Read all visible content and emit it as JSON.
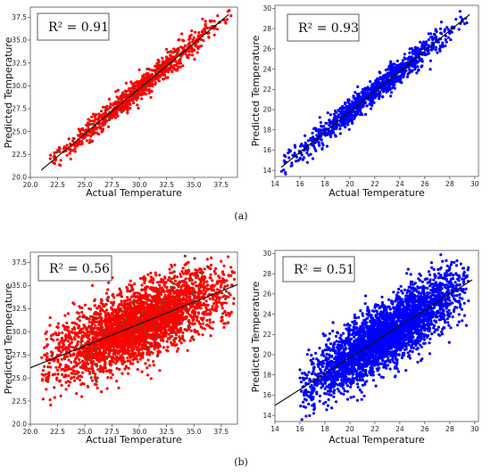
{
  "chart_data": [
    {
      "type": "scatter",
      "panel": "a",
      "annotation": "R² = 0.91",
      "xlabel": "Actual Temperature",
      "ylabel": "Predicted Temperature",
      "xlim": [
        20.0,
        39.0
      ],
      "ylim": [
        20.0,
        38.6
      ],
      "xticks": [
        "20.0",
        "22.5",
        "25.0",
        "27.5",
        "30.0",
        "32.5",
        "35.0",
        "37.5"
      ],
      "yticks": [
        "20.0",
        "22.5",
        "25.0",
        "27.5",
        "30.0",
        "32.5",
        "35.0",
        "37.5"
      ],
      "point_color": "#ff0000",
      "outlier_color": "#8b3a1a",
      "point_count": 900,
      "x_range": [
        21.5,
        38.5
      ],
      "fit_line": [
        [
          21.0,
          20.8
        ],
        [
          38.2,
          37.8
        ]
      ],
      "noise_sd": 0.65
    },
    {
      "type": "scatter",
      "panel": "a",
      "annotation": "R² = 0.93",
      "xlabel": "Actual Temperature",
      "ylabel": "Predicted Temperature",
      "xlim": [
        14.0,
        30.3
      ],
      "ylim": [
        13.4,
        30.3
      ],
      "xticks": [
        "14",
        "16",
        "18",
        "20",
        "22",
        "24",
        "26",
        "28",
        "30"
      ],
      "yticks": [
        "14",
        "16",
        "18",
        "20",
        "22",
        "24",
        "26",
        "28",
        "30"
      ],
      "point_color": "#0000ff",
      "outlier_color": "#0000ff",
      "point_count": 1100,
      "x_range": [
        14.5,
        29.5
      ],
      "fit_line": [
        [
          14.5,
          14.3
        ],
        [
          29.6,
          29.4
        ]
      ],
      "noise_sd": 0.6
    },
    {
      "type": "scatter",
      "panel": "b",
      "annotation": "R² = 0.56",
      "xlabel": "Actual Temperature",
      "ylabel": "Predicted Temperature",
      "xlim": [
        20.0,
        39.0
      ],
      "ylim": [
        20.0,
        38.6
      ],
      "xticks": [
        "20.0",
        "22.5",
        "25.0",
        "27.5",
        "30.0",
        "32.5",
        "35.0",
        "37.5"
      ],
      "yticks": [
        "20.0",
        "22.5",
        "25.0",
        "27.5",
        "30.0",
        "32.5",
        "35.0",
        "37.5"
      ],
      "point_color": "#ff0000",
      "outlier_color": "#8b3a1a",
      "point_count": 3500,
      "x_range": [
        21.0,
        38.8
      ],
      "fit_line": [
        [
          20.0,
          26.1
        ],
        [
          39.0,
          35.1
        ]
      ],
      "noise_sd": 1.9
    },
    {
      "type": "scatter",
      "panel": "b",
      "annotation": "R² = 0.51",
      "xlabel": "Actual Temperature",
      "ylabel": "Predicted Temperature",
      "xlim": [
        14.0,
        30.3
      ],
      "ylim": [
        13.4,
        30.3
      ],
      "xticks": [
        "14",
        "16",
        "18",
        "20",
        "22",
        "24",
        "26",
        "28",
        "30"
      ],
      "yticks": [
        "14",
        "16",
        "18",
        "20",
        "22",
        "24",
        "26",
        "28",
        "30"
      ],
      "point_color": "#0000ff",
      "outlier_color": "#0000ff",
      "point_count": 3500,
      "x_range": [
        16.0,
        29.5
      ],
      "fit_line": [
        [
          14.0,
          15.0
        ],
        [
          29.8,
          27.4
        ]
      ],
      "noise_sd": 1.55
    }
  ],
  "captions": {
    "a": "(a)",
    "b": "(b)"
  }
}
